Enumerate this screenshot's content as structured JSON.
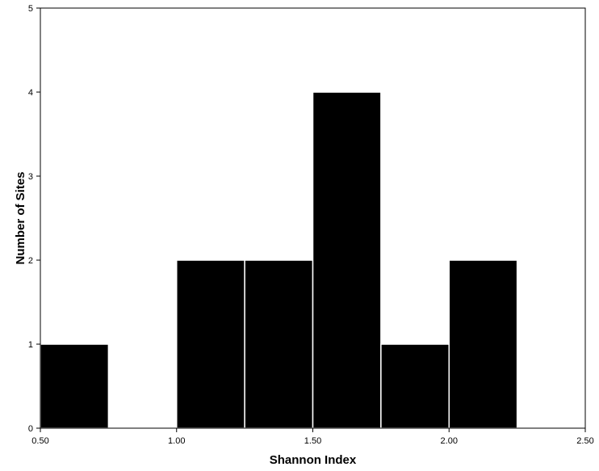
{
  "chart_data": {
    "type": "bar",
    "subtype": "histogram",
    "title": "",
    "xlabel": "Shannon Index",
    "ylabel": "Number of Sites",
    "xlim": [
      0.5,
      2.5
    ],
    "ylim": [
      0,
      5
    ],
    "x_ticks": [
      "0.50",
      "1.00",
      "1.50",
      "2.00",
      "2.50"
    ],
    "y_ticks": [
      "0",
      "1",
      "2",
      "3",
      "4",
      "5"
    ],
    "bin_edges": [
      0.5,
      0.75,
      1.0,
      1.25,
      1.5,
      1.75,
      2.0,
      2.25
    ],
    "values": [
      1,
      0,
      2,
      2,
      4,
      1,
      2
    ],
    "grid": false,
    "bar_color": "#000000",
    "bar_edge_color": "#ffffff"
  }
}
